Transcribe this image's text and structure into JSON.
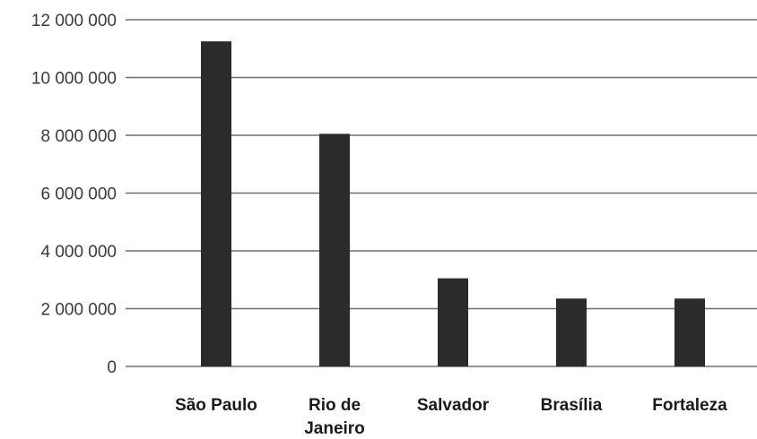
{
  "chart_data": {
    "type": "bar",
    "categories": [
      [
        "São Paulo"
      ],
      [
        "Rio de",
        "Janeiro"
      ],
      [
        "Salvador"
      ],
      [
        "Brasília"
      ],
      [
        "Fortaleza"
      ]
    ],
    "values": [
      11250000,
      8050000,
      3050000,
      2350000,
      2350000
    ],
    "ylim": [
      0,
      12000000
    ],
    "yticks": [
      0,
      2000000,
      4000000,
      6000000,
      8000000,
      10000000,
      12000000
    ],
    "ytick_labels": [
      "0",
      "2 000 000",
      "4 000 000",
      "6 000 000",
      "8 000 000",
      "10 000 000",
      "12 000 000"
    ],
    "grid": true,
    "legend": "none",
    "colors": {
      "bar": "#2b2b2b",
      "grid": "#6e6e6e",
      "tick_text": "#3a3a3a",
      "category_text": "#1a1a1a"
    }
  }
}
